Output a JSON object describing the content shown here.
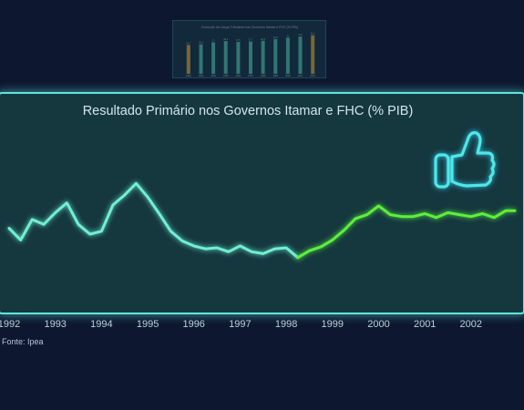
{
  "chart_data": {
    "type": "line",
    "title": "Resultado Primário nos Governos Itamar e FHC (% PIB)",
    "xlabel": "",
    "ylabel": "",
    "x_ticks": [
      "1992",
      "1993",
      "1994",
      "1995",
      "1996",
      "1997",
      "1998",
      "1999",
      "2000",
      "2001",
      "2002"
    ],
    "xlim": [
      1992.0,
      2002.95
    ],
    "ylim": [
      -2.0,
      5.0
    ],
    "grid": false,
    "legend": "none",
    "series": [
      {
        "color": "#6ff0d2",
        "x": [
          1992.0,
          1992.25,
          1992.5,
          1992.75,
          1993.0,
          1993.25,
          1993.5,
          1993.75,
          1994.0,
          1994.25,
          1994.5,
          1994.75,
          1995.0,
          1995.25,
          1995.5,
          1995.75,
          1996.0,
          1996.25,
          1996.5,
          1996.75,
          1997.0,
          1997.25,
          1997.5,
          1997.75,
          1998.0,
          1998.25
        ],
        "y": [
          1.1,
          0.5,
          1.55,
          1.3,
          1.9,
          2.4,
          1.3,
          0.8,
          0.95,
          2.3,
          2.8,
          3.4,
          2.7,
          1.85,
          0.95,
          0.45,
          0.2,
          0.05,
          0.1,
          -0.1,
          0.2,
          -0.1,
          -0.2,
          0.05,
          0.1,
          -0.4
        ]
      },
      {
        "color": "#5cf03c",
        "x": [
          1998.25,
          1998.5,
          1998.75,
          1999.0,
          1999.25,
          1999.5,
          1999.75,
          2000.0,
          2000.25,
          2000.5,
          2000.75,
          2001.0,
          2001.25,
          2001.5,
          2001.75,
          2002.0,
          2002.25,
          2002.5,
          2002.75,
          2002.95
        ],
        "y": [
          -0.4,
          -0.05,
          0.15,
          0.5,
          1.0,
          1.6,
          1.8,
          2.25,
          1.8,
          1.7,
          1.7,
          1.85,
          1.65,
          1.9,
          1.8,
          1.7,
          1.85,
          1.65,
          2.0,
          2.0
        ]
      }
    ]
  },
  "thumbnail_chart": {
    "type": "bar",
    "title": "Evolução da Carga Tributária nos Governos Itamar e FHC (% PIB)",
    "categories": [
      "1992",
      "1993",
      "1994",
      "1995",
      "1996",
      "1997",
      "1998",
      "1999",
      "2000",
      "2001",
      "2002"
    ],
    "values": [
      24.7,
      25.3,
      27.0,
      28.2,
      27.5,
      27.7,
      28.3,
      29.8,
      31.0,
      31.9,
      33.1
    ],
    "ylim": [
      0,
      36
    ],
    "bar_colors": [
      "#d8a63a",
      "#4fc3ad",
      "#4fc3ad",
      "#4fc3ad",
      "#4fc3ad",
      "#4fc3ad",
      "#4fc3ad",
      "#4fc3ad",
      "#4fc3ad",
      "#4fc3ad",
      "#d8a63a"
    ]
  },
  "icons": {
    "thumbs_up": "thumbs-up-icon"
  },
  "source": "Fonte: Ipea"
}
